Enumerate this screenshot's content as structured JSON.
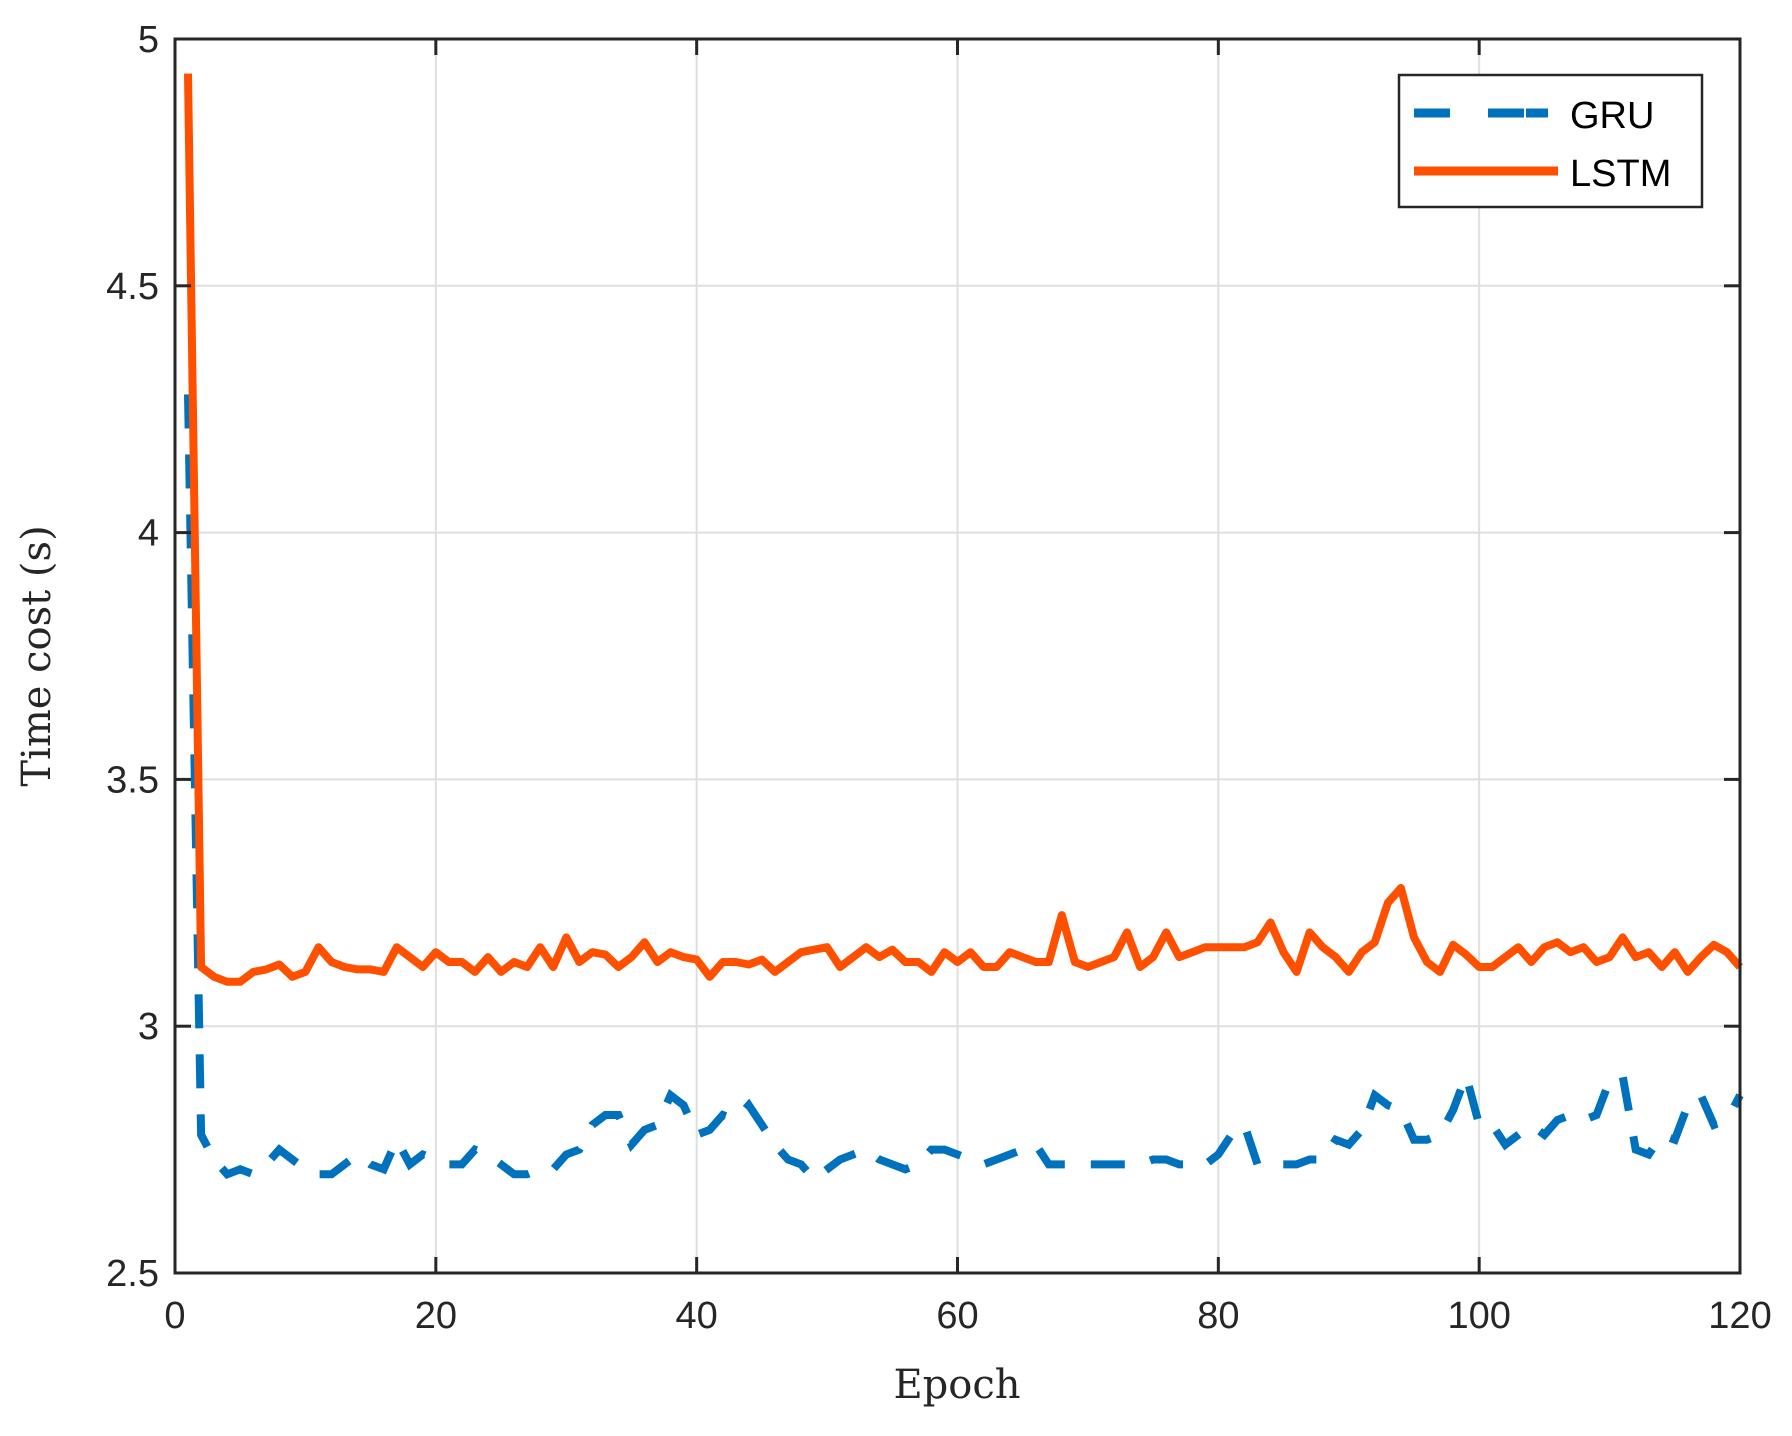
{
  "chart_data": {
    "type": "line",
    "title": "",
    "xlabel": "Epoch",
    "ylabel": "Time cost (s)",
    "xlim": [
      0,
      120
    ],
    "ylim": [
      2.5,
      5
    ],
    "xticks": [
      0,
      20,
      40,
      60,
      80,
      100,
      120
    ],
    "xtick_labels": [
      "0",
      "20",
      "40",
      "60",
      "80",
      "100",
      "120"
    ],
    "yticks": [
      2.5,
      3,
      3.5,
      4,
      4.5,
      5
    ],
    "ytick_labels": [
      "2.5",
      "3",
      "3.5",
      "4",
      "4.5",
      "5"
    ],
    "grid": true,
    "legend_position": "upper right",
    "series": [
      {
        "name": "GRU",
        "color": "#0072BD",
        "style": "dashed",
        "x_start": 1,
        "values": [
          4.28,
          2.78,
          2.73,
          2.7,
          2.71,
          2.7,
          2.72,
          2.75,
          2.73,
          2.71,
          2.7,
          2.7,
          2.72,
          2.74,
          2.72,
          2.71,
          2.77,
          2.72,
          2.74,
          2.73,
          2.72,
          2.72,
          2.75,
          2.74,
          2.72,
          2.7,
          2.7,
          2.71,
          2.71,
          2.74,
          2.75,
          2.8,
          2.82,
          2.82,
          2.76,
          2.79,
          2.8,
          2.86,
          2.84,
          2.78,
          2.79,
          2.82,
          2.81,
          2.84,
          2.8,
          2.76,
          2.73,
          2.72,
          2.69,
          2.71,
          2.73,
          2.74,
          2.75,
          2.73,
          2.72,
          2.71,
          2.72,
          2.75,
          2.75,
          2.74,
          2.73,
          2.72,
          2.73,
          2.74,
          2.75,
          2.76,
          2.72,
          2.72,
          2.72,
          2.72,
          2.72,
          2.72,
          2.72,
          2.72,
          2.73,
          2.73,
          2.72,
          2.72,
          2.72,
          2.74,
          2.78,
          2.8,
          2.72,
          2.72,
          2.72,
          2.72,
          2.73,
          2.73,
          2.77,
          2.76,
          2.79,
          2.86,
          2.84,
          2.83,
          2.77,
          2.77,
          2.78,
          2.83,
          2.9,
          2.8,
          2.8,
          2.76,
          2.78,
          2.8,
          2.78,
          2.81,
          2.82,
          2.81,
          2.82,
          2.89,
          2.9,
          2.75,
          2.74,
          2.78,
          2.77,
          2.84,
          2.86,
          2.8,
          2.81,
          2.86
        ]
      },
      {
        "name": "LSTM",
        "color": "#FF5000",
        "style": "solid",
        "x_start": 1,
        "values": [
          4.93,
          3.12,
          3.1,
          3.09,
          3.09,
          3.11,
          3.115,
          3.125,
          3.1,
          3.11,
          3.16,
          3.13,
          3.12,
          3.115,
          3.115,
          3.11,
          3.16,
          3.14,
          3.12,
          3.15,
          3.13,
          3.13,
          3.11,
          3.14,
          3.11,
          3.13,
          3.12,
          3.16,
          3.12,
          3.18,
          3.13,
          3.15,
          3.145,
          3.12,
          3.14,
          3.17,
          3.13,
          3.15,
          3.14,
          3.135,
          3.1,
          3.13,
          3.13,
          3.125,
          3.135,
          3.11,
          3.13,
          3.15,
          3.155,
          3.16,
          3.12,
          3.14,
          3.16,
          3.14,
          3.155,
          3.13,
          3.13,
          3.11,
          3.15,
          3.13,
          3.15,
          3.12,
          3.12,
          3.15,
          3.14,
          3.13,
          3.13,
          3.225,
          3.13,
          3.12,
          3.13,
          3.14,
          3.19,
          3.12,
          3.14,
          3.19,
          3.14,
          3.15,
          3.16,
          3.16,
          3.16,
          3.16,
          3.17,
          3.21,
          3.15,
          3.11,
          3.19,
          3.16,
          3.14,
          3.11,
          3.15,
          3.17,
          3.25,
          3.28,
          3.18,
          3.13,
          3.11,
          3.165,
          3.145,
          3.12,
          3.12,
          3.14,
          3.16,
          3.13,
          3.16,
          3.17,
          3.15,
          3.16,
          3.13,
          3.14,
          3.18,
          3.14,
          3.15,
          3.12,
          3.15,
          3.11,
          3.14,
          3.165,
          3.15,
          3.12
        ]
      }
    ]
  },
  "legend": {
    "items": [
      {
        "label": "GRU",
        "color": "#0072BD",
        "style": "dashed"
      },
      {
        "label": "LSTM",
        "color": "#FF5000",
        "style": "solid"
      }
    ]
  },
  "colors": {
    "axis": "#262626",
    "grid": "#DFDFDF",
    "background": "#FFFFFF"
  }
}
